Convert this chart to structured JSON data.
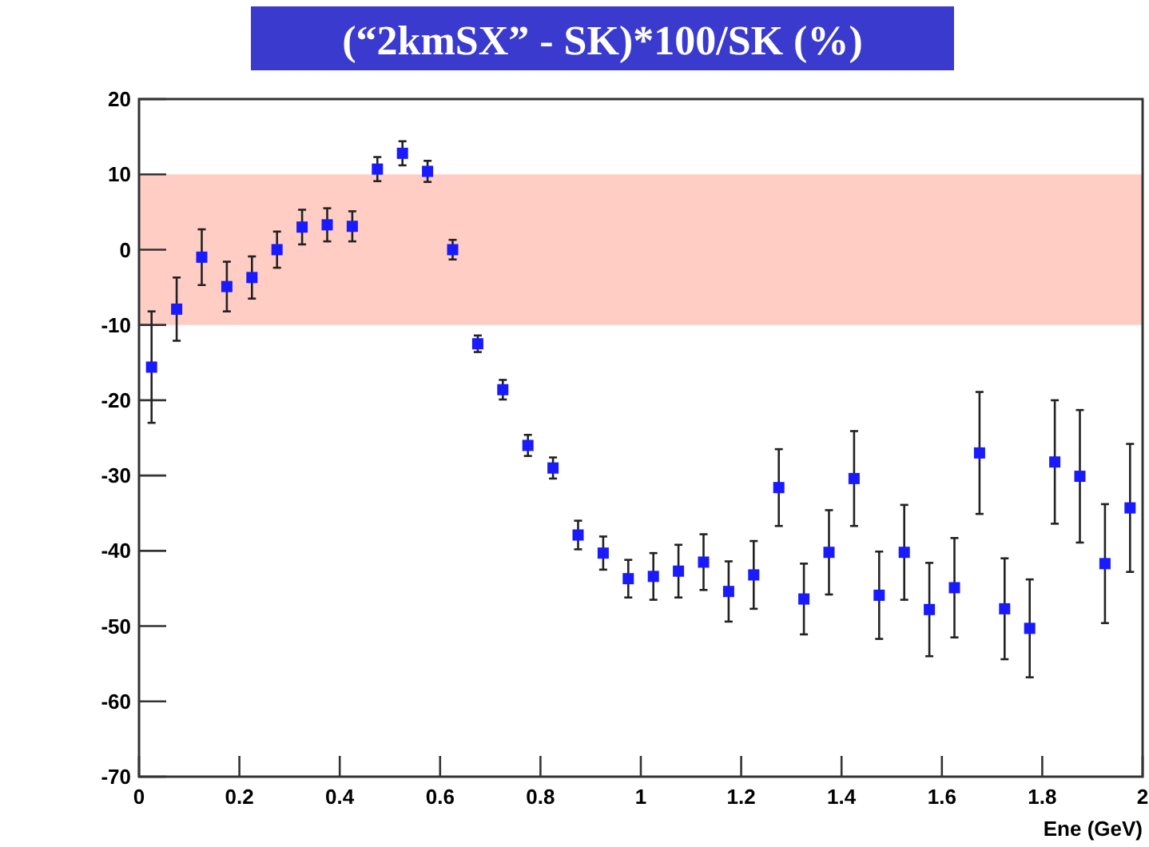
{
  "chart_data": {
    "type": "scatter",
    "title": "(“2kmSX” - SK)*100/SK (%)",
    "xlabel": "Ene (GeV)",
    "x": [
      0.025,
      0.075,
      0.125,
      0.175,
      0.225,
      0.275,
      0.325,
      0.375,
      0.425,
      0.475,
      0.525,
      0.575,
      0.625,
      0.675,
      0.725,
      0.775,
      0.825,
      0.875,
      0.925,
      0.975,
      1.025,
      1.075,
      1.125,
      1.175,
      1.225,
      1.275,
      1.325,
      1.375,
      1.425,
      1.475,
      1.525,
      1.575,
      1.625,
      1.675,
      1.725,
      1.775,
      1.825,
      1.875,
      1.925,
      1.975
    ],
    "values": [
      -15.6,
      -7.9,
      -1,
      -4.9,
      -3.7,
      0,
      3,
      3.3,
      3.1,
      10.7,
      12.8,
      10.4,
      0,
      -12.5,
      -18.6,
      -26,
      -29,
      -37.9,
      -40.3,
      -43.7,
      -43.4,
      -42.7,
      -41.5,
      -45.4,
      -43.2,
      -31.6,
      -46.4,
      -40.2,
      -30.4,
      -45.9,
      -40.2,
      -47.8,
      -44.9,
      -27,
      -47.7,
      -50.3,
      -28.2,
      -30.1,
      -41.7,
      -34.3
    ],
    "errors": [
      7.4,
      4.2,
      3.7,
      3.3,
      2.8,
      2.4,
      2.3,
      2.2,
      2,
      1.6,
      1.6,
      1.4,
      1.3,
      1.1,
      1.3,
      1.4,
      1.4,
      1.9,
      2.2,
      2.5,
      3.1,
      3.5,
      3.7,
      4,
      4.5,
      5.1,
      4.7,
      5.6,
      6.3,
      5.8,
      6.3,
      6.2,
      6.6,
      8.1,
      6.7,
      6.5,
      8.2,
      8.8,
      7.9,
      8.5
    ],
    "color": "#1a1aff",
    "marker": "square",
    "bands": [
      {
        "axis": "y",
        "from": -10,
        "to": 10,
        "color": "#ffcdc4"
      }
    ],
    "xlim": [
      0,
      2
    ],
    "xticks": [
      0,
      0.2,
      0.4,
      0.6,
      0.8,
      1,
      1.2,
      1.4,
      1.6,
      1.8,
      2
    ],
    "ylim": [
      -70,
      20
    ],
    "yticks": [
      -70,
      -60,
      -50,
      -40,
      -30,
      -20,
      -10,
      0,
      10,
      20
    ]
  }
}
